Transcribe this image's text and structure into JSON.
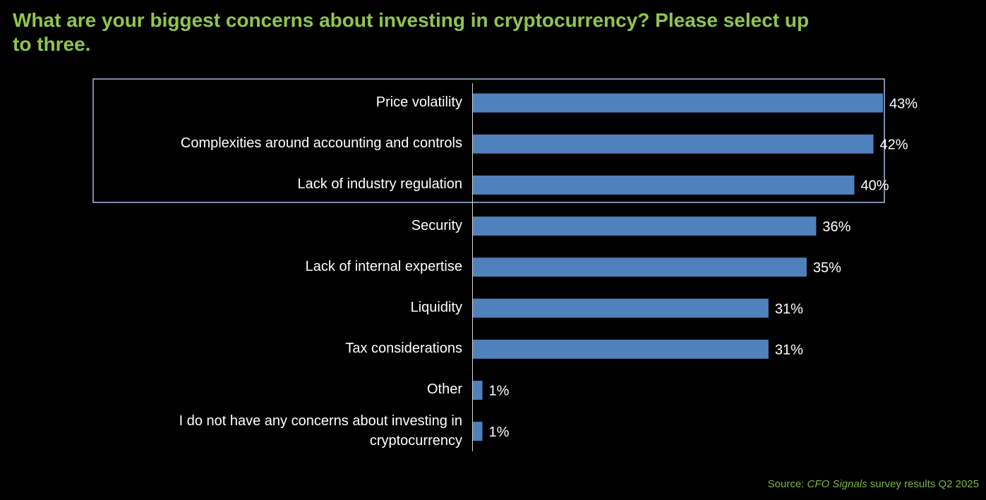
{
  "chart_data": {
    "type": "bar",
    "orientation": "horizontal",
    "title": "What are your biggest concerns about investing in cryptocurrency? Please select up to three.",
    "categories": [
      "Price volatility",
      "Complexities around accounting and controls",
      "Lack of industry regulation",
      "Security",
      "Lack of internal expertise",
      "Liquidity",
      "Tax considerations",
      "Other",
      "I do not have any concerns about investing in cryptocurrency"
    ],
    "values": [
      43,
      42,
      40,
      36,
      35,
      31,
      31,
      1,
      1
    ],
    "value_labels": [
      "43%",
      "42%",
      "40%",
      "36%",
      "35%",
      "31%",
      "31%",
      "1%",
      "1%"
    ],
    "color": "#4f81bd",
    "source": {
      "prefix": "Source: ",
      "publication": "CFO Signals",
      "suffix": " survey results Q2 2025"
    }
  }
}
